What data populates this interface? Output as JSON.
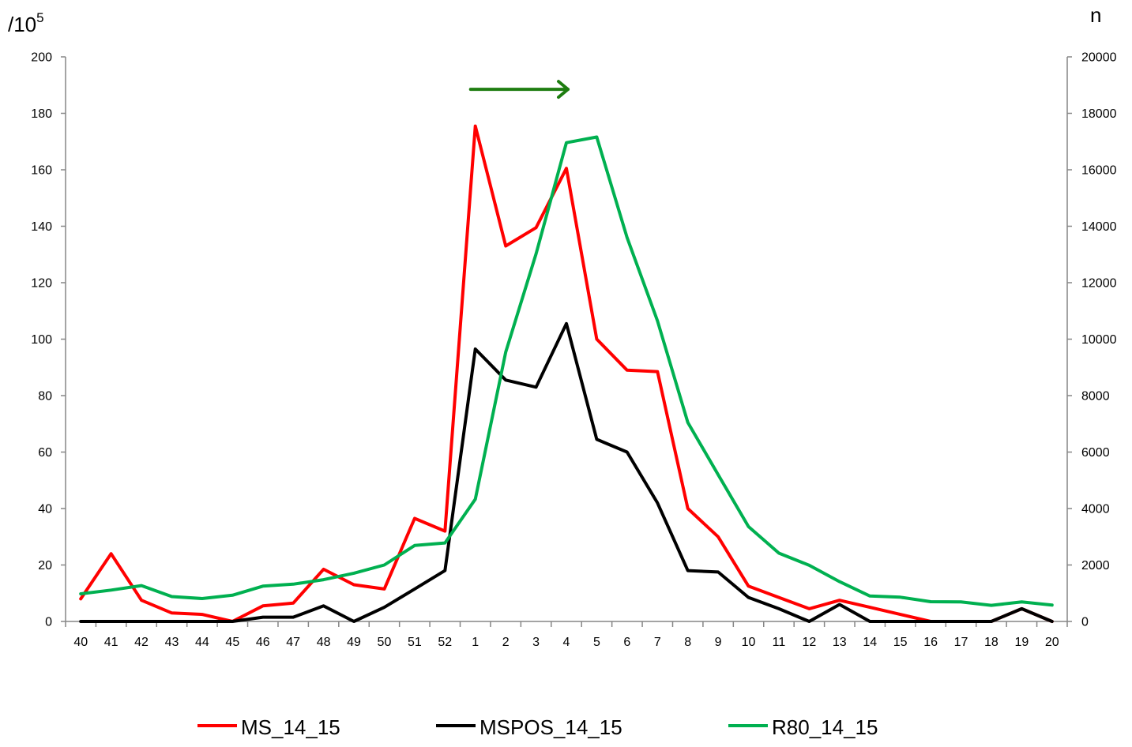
{
  "chart_data": {
    "type": "line",
    "left_axis_unit": "/10",
    "left_axis_unit_sup": "5",
    "right_axis_unit": "n",
    "categories": [
      "40",
      "41",
      "42",
      "43",
      "44",
      "45",
      "46",
      "47",
      "48",
      "49",
      "50",
      "51",
      "52",
      "1",
      "2",
      "3",
      "4",
      "5",
      "6",
      "7",
      "8",
      "9",
      "10",
      "11",
      "12",
      "13",
      "14",
      "15",
      "16",
      "17",
      "18",
      "19",
      "20"
    ],
    "y_left": {
      "min": 0,
      "max": 200,
      "step": 20,
      "ticks": [
        "0",
        "20",
        "40",
        "60",
        "80",
        "100",
        "120",
        "140",
        "160",
        "180",
        "200"
      ]
    },
    "y_right": {
      "min": 0,
      "max": 20000,
      "step": 2000,
      "ticks": [
        "0",
        "2000",
        "4000",
        "6000",
        "8000",
        "10000",
        "12000",
        "14000",
        "16000",
        "18000",
        "20000"
      ]
    },
    "series": [
      {
        "name": "MS_14_15",
        "axis": "left",
        "color": "#ff0000",
        "values": [
          8,
          24,
          7.5,
          3,
          2.5,
          0,
          5.5,
          6.5,
          18.5,
          13,
          11.5,
          36.5,
          32,
          175.5,
          133,
          139.5,
          160.5,
          100,
          89,
          88.5,
          40,
          30,
          12.5,
          8.5,
          4.5,
          7.5,
          5,
          2.5,
          0,
          0,
          0,
          4.5,
          0
        ]
      },
      {
        "name": "MSPOS_14_15",
        "axis": "left",
        "color": "#000000",
        "values": [
          0,
          0,
          0,
          0,
          0,
          0,
          1.5,
          1.5,
          5.5,
          0,
          5,
          11.5,
          18,
          96.5,
          85.5,
          83,
          105.5,
          64.5,
          60,
          42,
          18,
          17.5,
          8.5,
          4.5,
          0,
          6,
          0,
          0,
          0,
          0,
          0,
          4.5,
          0
        ]
      },
      {
        "name": "R80_14_15",
        "axis": "right",
        "color": "#00b050",
        "values": [
          980,
          1110,
          1270,
          880,
          810,
          930,
          1250,
          1320,
          1480,
          1710,
          2000,
          2690,
          2780,
          4330,
          9540,
          13020,
          16960,
          17160,
          13600,
          10650,
          7050,
          5200,
          3360,
          2420,
          1990,
          1410,
          900,
          860,
          700,
          690,
          570,
          690,
          580
        ]
      }
    ],
    "annotation": {
      "type": "arrow",
      "color": "#1e7d10",
      "from_category": "1",
      "to_category": "4",
      "y_value": 188.5
    },
    "legend": {
      "position": "bottom"
    }
  }
}
